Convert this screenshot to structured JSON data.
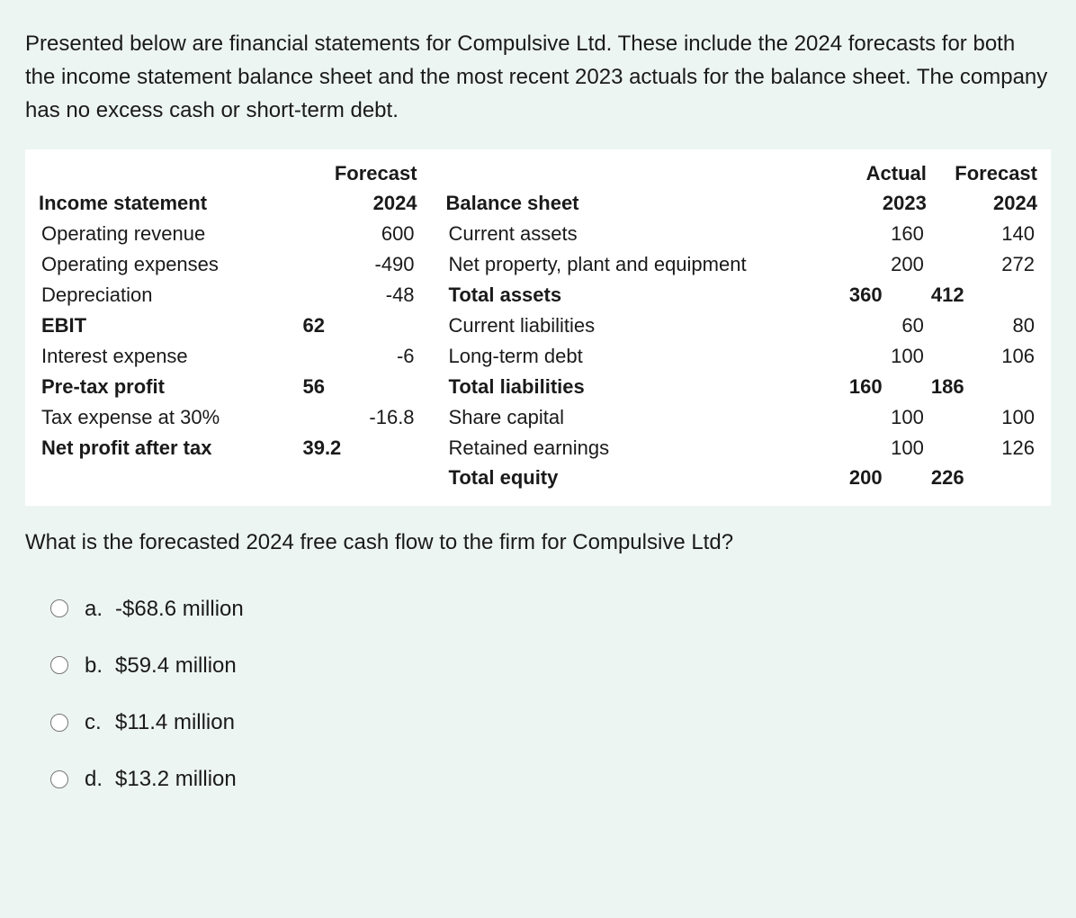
{
  "colors": {
    "page_bg": "#edf5f3",
    "table_bg": "#ffffff",
    "text": "#1a1a1a"
  },
  "typography": {
    "body_fontsize": 24,
    "table_fontsize": 22,
    "font_family": "Arial, Helvetica, sans-serif"
  },
  "intro": "Presented below are financial statements for Compulsive Ltd. These include the 2024 forecasts for both the income statement balance sheet and the most recent 2023 actuals for the balance sheet. The company has no excess cash or short-term debt.",
  "income_statement": {
    "header_top": "Forecast",
    "title": "Income statement",
    "year": "2024",
    "rows": [
      {
        "label": "Operating revenue",
        "value": "600",
        "bold": false
      },
      {
        "label": "Operating expenses",
        "value": "-490",
        "bold": false
      },
      {
        "label": "Depreciation",
        "value": "-48",
        "bold": false
      },
      {
        "label": "EBIT",
        "value": "62",
        "bold": true
      },
      {
        "label": "Interest expense",
        "value": "-6",
        "bold": false
      },
      {
        "label": "Pre-tax profit",
        "value": "56",
        "bold": true
      },
      {
        "label": "Tax expense at 30%",
        "value": "-16.8",
        "bold": false
      },
      {
        "label": "Net profit after tax",
        "value": "39.2",
        "bold": true
      }
    ]
  },
  "balance_sheet": {
    "header_top_actual": "Actual",
    "header_top_forecast": "Forecast",
    "title": "Balance sheet",
    "year_actual": "2023",
    "year_forecast": "2024",
    "rows": [
      {
        "label": "Current assets",
        "actual": "160",
        "forecast": "140",
        "bold": false
      },
      {
        "label": "Net property, plant and equipment",
        "actual": "200",
        "forecast": "272",
        "bold": false
      },
      {
        "label": "Total assets",
        "actual": "360",
        "forecast": "412",
        "bold": true
      },
      {
        "label": "Current liabilities",
        "actual": "60",
        "forecast": "80",
        "bold": false
      },
      {
        "label": "Long-term debt",
        "actual": "100",
        "forecast": "106",
        "bold": false
      },
      {
        "label": "Total liabilities",
        "actual": "160",
        "forecast": "186",
        "bold": true
      },
      {
        "label": "Share capital",
        "actual": "100",
        "forecast": "100",
        "bold": false
      },
      {
        "label": "Retained earnings",
        "actual": "100",
        "forecast": "126",
        "bold": false
      },
      {
        "label": "Total equity",
        "actual": "200",
        "forecast": "226",
        "bold": true
      }
    ]
  },
  "question": "What is the forecasted 2024 free cash flow to the firm for Compulsive Ltd?",
  "options": [
    {
      "letter": "a.",
      "text": "-$68.6 million"
    },
    {
      "letter": "b.",
      "text": "$59.4 million"
    },
    {
      "letter": "c.",
      "text": "$11.4 million"
    },
    {
      "letter": "d.",
      "text": "$13.2 million"
    }
  ]
}
